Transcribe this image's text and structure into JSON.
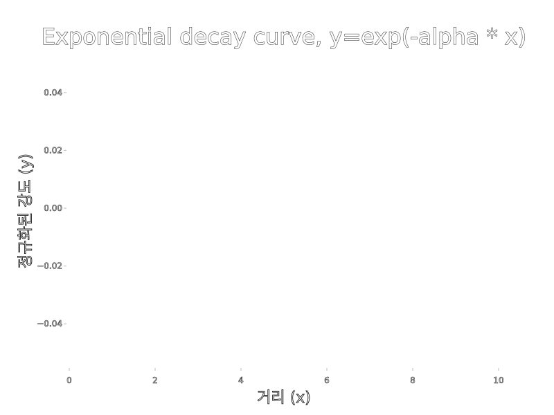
{
  "chart_data": {
    "type": "line",
    "title": "Exponential decay curve, y=exp(-alpha * x)",
    "xlabel": "거리 (x)",
    "ylabel": "정규화된 강도 (y)",
    "xlim": [
      0,
      10
    ],
    "ylim": [
      -0.05,
      0.05
    ],
    "x_ticks": [
      0,
      2,
      4,
      6,
      8,
      10
    ],
    "x_tick_labels": [
      "0",
      "2",
      "4",
      "6",
      "8",
      "10"
    ],
    "y_ticks": [
      0.04,
      0.02,
      0.0,
      -0.02,
      -0.04
    ],
    "y_tick_labels": [
      "0.04",
      "0.02",
      "0.00",
      "−0.02",
      "−0.04"
    ],
    "series": [],
    "grid": false,
    "legend": "none"
  }
}
